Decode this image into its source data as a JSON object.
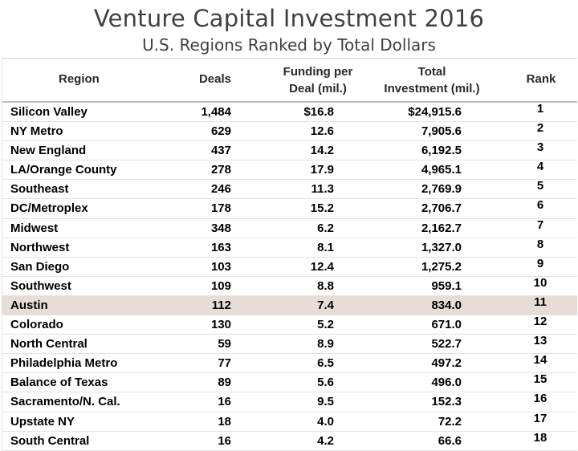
{
  "title": "Venture Capital Investment 2016",
  "subtitle": "U.S. Regions Ranked by Total Dollars",
  "headers": {
    "region": "Region",
    "deals": "Deals",
    "funding_line1": "Funding per",
    "funding_line2": "Deal (mil.)",
    "total_line1": "Total",
    "total_line2": "Investment (mil.)",
    "rank": "Rank"
  },
  "highlight_color": "#e7ddd6",
  "chart_data": {
    "type": "table",
    "title": "Venture Capital Investment 2016",
    "subtitle": "U.S. Regions Ranked by Total Dollars",
    "columns": [
      "Region",
      "Deals",
      "Funding per Deal (mil.)",
      "Total Investment (mil.)",
      "Rank"
    ],
    "highlighted_row": "Austin",
    "rows": [
      {
        "region": "Silicon Valley",
        "deals": "1,484",
        "funding": "$16.8",
        "total": "$24,915.6",
        "rank": "1"
      },
      {
        "region": "NY Metro",
        "deals": "629",
        "funding": "12.6",
        "total": "7,905.6",
        "rank": "2"
      },
      {
        "region": "New England",
        "deals": "437",
        "funding": "14.2",
        "total": "6,192.5",
        "rank": "3"
      },
      {
        "region": "LA/Orange County",
        "deals": "278",
        "funding": "17.9",
        "total": "4,965.1",
        "rank": "4"
      },
      {
        "region": "Southeast",
        "deals": "246",
        "funding": "11.3",
        "total": "2,769.9",
        "rank": "5"
      },
      {
        "region": "DC/Metroplex",
        "deals": "178",
        "funding": "15.2",
        "total": "2,706.7",
        "rank": "6"
      },
      {
        "region": "Midwest",
        "deals": "348",
        "funding": "6.2",
        "total": "2,162.7",
        "rank": "7"
      },
      {
        "region": "Northwest",
        "deals": "163",
        "funding": "8.1",
        "total": "1,327.0",
        "rank": "8"
      },
      {
        "region": "San Diego",
        "deals": "103",
        "funding": "12.4",
        "total": "1,275.2",
        "rank": "9"
      },
      {
        "region": "Southwest",
        "deals": "109",
        "funding": "8.8",
        "total": "959.1",
        "rank": "10"
      },
      {
        "region": "Austin",
        "deals": "112",
        "funding": "7.4",
        "total": "834.0",
        "rank": "11"
      },
      {
        "region": "Colorado",
        "deals": "130",
        "funding": "5.2",
        "total": "671.0",
        "rank": "12"
      },
      {
        "region": "North Central",
        "deals": "59",
        "funding": "8.9",
        "total": "522.7",
        "rank": "13"
      },
      {
        "region": "Philadelphia Metro",
        "deals": "77",
        "funding": "6.5",
        "total": "497.2",
        "rank": "14"
      },
      {
        "region": "Balance of Texas",
        "deals": "89",
        "funding": "5.6",
        "total": "496.0",
        "rank": "15"
      },
      {
        "region": "Sacramento/N. Cal.",
        "deals": "16",
        "funding": "9.5",
        "total": "152.3",
        "rank": "16"
      },
      {
        "region": "Upstate NY",
        "deals": "18",
        "funding": "4.0",
        "total": "72.2",
        "rank": "17"
      },
      {
        "region": "South Central",
        "deals": "16",
        "funding": "4.2",
        "total": "66.6",
        "rank": "18"
      }
    ]
  }
}
